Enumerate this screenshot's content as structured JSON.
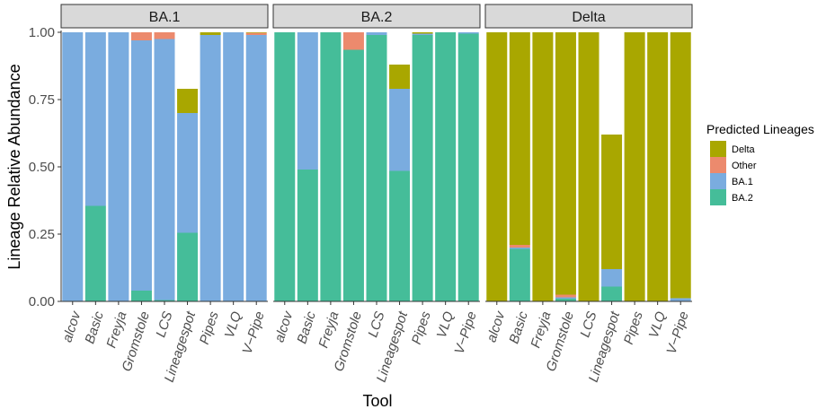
{
  "chart_data": {
    "type": "bar",
    "stacked": true,
    "facets": [
      "BA.1",
      "BA.2",
      "Delta"
    ],
    "categories": [
      "alcov",
      "Basic",
      "Freyja",
      "Gromstole",
      "LCS",
      "Lineagespot",
      "Pipes",
      "VLQ",
      "V−Pipe"
    ],
    "xlabel": "Tool",
    "ylabel": "Lineage Relative Abundance",
    "ylim": [
      0,
      1
    ],
    "yticks": [
      "0.00",
      "0.25",
      "0.50",
      "0.75",
      "1.00"
    ],
    "legend": {
      "title": "Predicted Lineages",
      "position": "right",
      "entries": [
        "Delta",
        "Other",
        "BA.1",
        "BA.2"
      ]
    },
    "colors": {
      "BA.2": "#45BD99",
      "BA.1": "#7AACDF",
      "Other": "#EC8A6D",
      "Delta": "#A9A700"
    },
    "stack_order": [
      "BA.2",
      "BA.1",
      "Other",
      "Delta"
    ],
    "panels": [
      {
        "facet": "BA.1",
        "series": [
          {
            "name": "BA.2",
            "values": [
              0,
              0.355,
              0,
              0.04,
              0.005,
              0.255,
              0,
              0,
              0
            ]
          },
          {
            "name": "BA.1",
            "values": [
              1.0,
              0.645,
              1.0,
              0.93,
              0.97,
              0.445,
              0.99,
              1.0,
              0.99
            ]
          },
          {
            "name": "Other",
            "values": [
              0,
              0,
              0,
              0.03,
              0.025,
              0,
              0,
              0,
              0.008
            ]
          },
          {
            "name": "Delta",
            "values": [
              0,
              0,
              0,
              0,
              0,
              0.09,
              0.01,
              0,
              0.002
            ]
          }
        ]
      },
      {
        "facet": "BA.2",
        "series": [
          {
            "name": "BA.2",
            "values": [
              1.0,
              0.49,
              1.0,
              0.935,
              0.99,
              0.485,
              0.99,
              1.0,
              0.995
            ]
          },
          {
            "name": "BA.1",
            "values": [
              0,
              0.51,
              0,
              0,
              0.01,
              0.305,
              0.005,
              0,
              0.005
            ]
          },
          {
            "name": "Other",
            "values": [
              0,
              0,
              0,
              0.065,
              0,
              0,
              0,
              0,
              0
            ]
          },
          {
            "name": "Delta",
            "values": [
              0,
              0,
              0,
              0,
              0,
              0.09,
              0.005,
              0,
              0
            ]
          }
        ]
      },
      {
        "facet": "Delta",
        "series": [
          {
            "name": "BA.2",
            "values": [
              0,
              0.195,
              0,
              0.01,
              0,
              0.055,
              0,
              0,
              0
            ]
          },
          {
            "name": "BA.1",
            "values": [
              0,
              0.005,
              0,
              0.005,
              0,
              0.065,
              0,
              0,
              0.012
            ]
          },
          {
            "name": "Other",
            "values": [
              0,
              0.01,
              0,
              0.01,
              0,
              0,
              0,
              0,
              0
            ]
          },
          {
            "name": "Delta",
            "values": [
              1.0,
              0.79,
              1.0,
              0.975,
              1.0,
              0.5,
              1.0,
              1.0,
              0.988
            ]
          }
        ]
      }
    ]
  }
}
